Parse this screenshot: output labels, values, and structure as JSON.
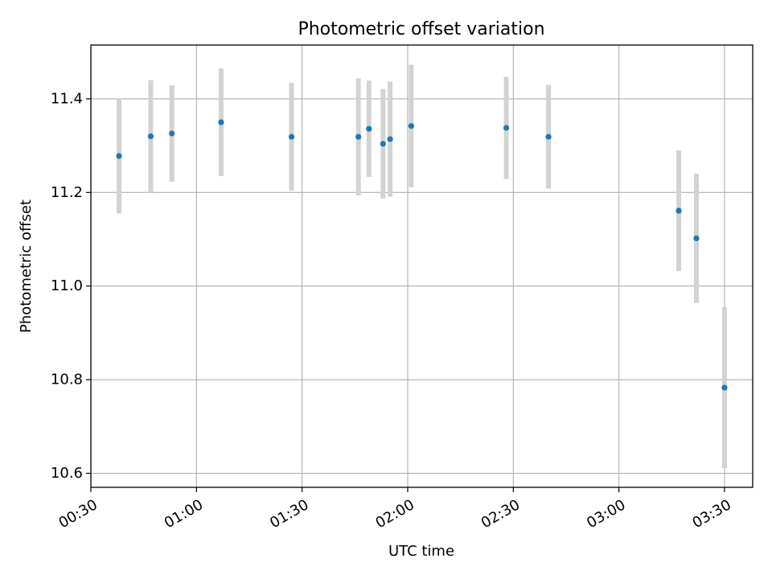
{
  "chart_data": {
    "type": "scatter",
    "title": "Photometric offset variation",
    "xlabel": "UTC time",
    "ylabel": "Photometric offset",
    "xlim": [
      "00:30",
      "03:38"
    ],
    "ylim": [
      10.57,
      11.515
    ],
    "x_ticks": [
      "00:30",
      "01:00",
      "01:30",
      "02:00",
      "02:30",
      "03:00",
      "03:30"
    ],
    "y_ticks": [
      10.6,
      10.8,
      11.0,
      11.2,
      11.4
    ],
    "grid": true,
    "colors": {
      "marker": "#1f77b4",
      "errorbar": "#d3d3d3",
      "grid": "#b0b0b0"
    },
    "series": [
      {
        "points": [
          {
            "x": "00:38",
            "y": 11.278,
            "yerr": 0.123
          },
          {
            "x": "00:47",
            "y": 11.32,
            "yerr": 0.12
          },
          {
            "x": "00:53",
            "y": 11.326,
            "yerr": 0.103
          },
          {
            "x": "01:07",
            "y": 11.35,
            "yerr": 0.115
          },
          {
            "x": "01:27",
            "y": 11.319,
            "yerr": 0.115
          },
          {
            "x": "01:46",
            "y": 11.319,
            "yerr": 0.125
          },
          {
            "x": "01:49",
            "y": 11.336,
            "yerr": 0.103
          },
          {
            "x": "01:53",
            "y": 11.304,
            "yerr": 0.117
          },
          {
            "x": "01:55",
            "y": 11.314,
            "yerr": 0.123
          },
          {
            "x": "02:01",
            "y": 11.342,
            "yerr": 0.131
          },
          {
            "x": "02:28",
            "y": 11.338,
            "yerr": 0.109
          },
          {
            "x": "02:40",
            "y": 11.319,
            "yerr": 0.111
          },
          {
            "x": "03:17",
            "y": 11.161,
            "yerr": 0.129
          },
          {
            "x": "03:22",
            "y": 11.102,
            "yerr": 0.138
          },
          {
            "x": "03:30",
            "y": 10.783,
            "yerr": 0.172
          }
        ]
      }
    ]
  }
}
